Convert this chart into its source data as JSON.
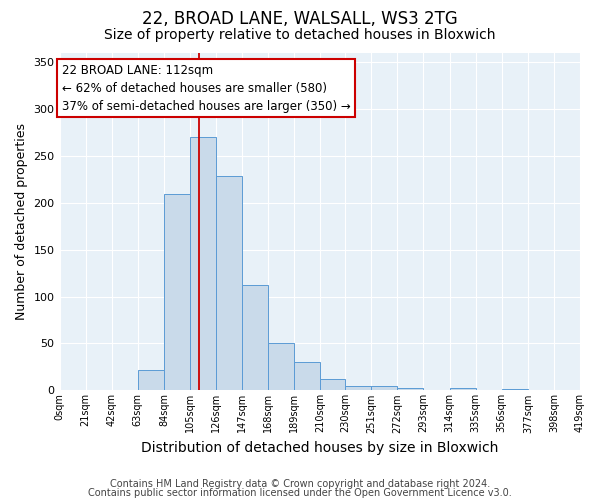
{
  "title1": "22, BROAD LANE, WALSALL, WS3 2TG",
  "title2": "Size of property relative to detached houses in Bloxwich",
  "xlabel": "Distribution of detached houses by size in Bloxwich",
  "ylabel": "Number of detached properties",
  "bin_edges": [
    0,
    21,
    42,
    63,
    84,
    105,
    126,
    147,
    168,
    189,
    210,
    230,
    251,
    272,
    293,
    314,
    335,
    356,
    377,
    398,
    419
  ],
  "bar_heights": [
    0,
    0,
    0,
    22,
    209,
    270,
    228,
    112,
    50,
    30,
    12,
    5,
    5,
    3,
    0,
    3,
    0,
    2,
    0,
    0
  ],
  "bar_color": "#c9daea",
  "bar_edge_color": "#5b9bd5",
  "property_size": 112,
  "red_line_color": "#cc0000",
  "annotation_line1": "22 BROAD LANE: 112sqm",
  "annotation_line2": "← 62% of detached houses are smaller (580)",
  "annotation_line3": "37% of semi-detached houses are larger (350) →",
  "annotation_box_color": "white",
  "annotation_box_edge_color": "#cc0000",
  "ylim": [
    0,
    360
  ],
  "yticks": [
    0,
    50,
    100,
    150,
    200,
    250,
    300,
    350
  ],
  "footnote1": "Contains HM Land Registry data © Crown copyright and database right 2024.",
  "footnote2": "Contains public sector information licensed under the Open Government Licence v3.0.",
  "plot_background": "#e8f1f8",
  "title1_fontsize": 12,
  "title2_fontsize": 10,
  "xlabel_fontsize": 10,
  "ylabel_fontsize": 9,
  "annotation_fontsize": 8.5,
  "footnote_fontsize": 7
}
